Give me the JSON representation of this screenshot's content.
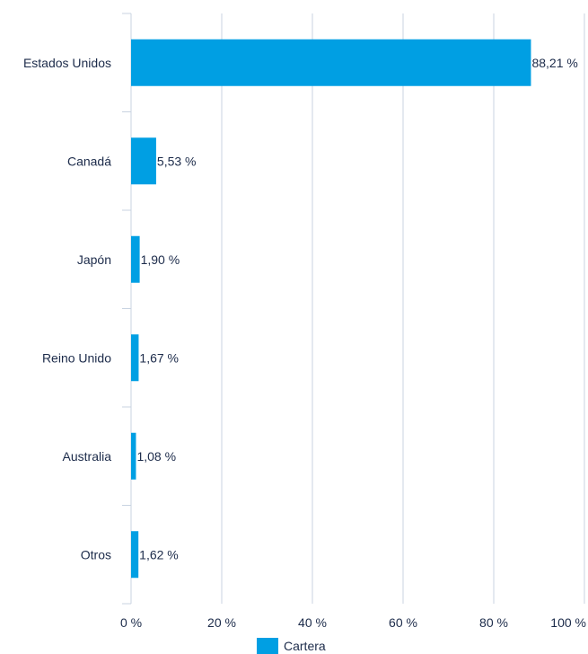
{
  "chart_data": {
    "type": "bar",
    "orientation": "horizontal",
    "categories": [
      "Estados Unidos",
      "Canadá",
      "Japón",
      "Reino Unido",
      "Australia",
      "Otros"
    ],
    "series": [
      {
        "name": "Cartera",
        "values": [
          88.21,
          5.53,
          1.9,
          1.67,
          1.08,
          1.62
        ],
        "labels": [
          "88,21 %",
          "5,53 %",
          "1,90 %",
          "1,67 %",
          "1,08 %",
          "1,62 %"
        ]
      }
    ],
    "xlim": [
      0,
      100
    ],
    "x_ticks": [
      0,
      20,
      40,
      60,
      80,
      100
    ],
    "x_tick_labels": [
      "0 %",
      "20 %",
      "40 %",
      "60 %",
      "80 %",
      "100 %"
    ],
    "grid": true,
    "legend_position": "bottom"
  },
  "colors": {
    "bar": "#009fe3",
    "grid": "#c8d3e1",
    "text": "#1c2b4a"
  }
}
